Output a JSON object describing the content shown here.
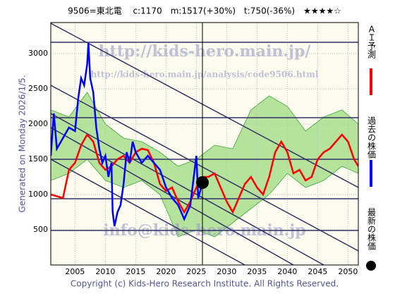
{
  "chart_data": {
    "type": "line",
    "title": "9506=東北電　 c:1170　m:1517(+30%)　t:750(-36%)　★★★★☆",
    "side_note": "Generated on Monday 2026/1/5.",
    "footer": "Copyright (c) Kids-Hero Research Institute. All Rights Reserved.",
    "watermarks": [
      "http://kids-hero.main.jp/",
      "http://kids-hero.main.jp/analysis/code9506.html",
      "info@kids-hero.main.jp"
    ],
    "xlim": [
      2001,
      2051.7
    ],
    "ylim": [
      0,
      3440
    ],
    "xticks": [
      2005,
      2010,
      2015,
      2020,
      2025,
      2030,
      2035,
      2040,
      2045,
      2050
    ],
    "yticks": [
      500,
      1000,
      1500,
      2000,
      2500,
      3000
    ],
    "grid": true,
    "now_x": 2026,
    "hlines": [
      3160,
      2090,
      1500,
      940,
      490
    ],
    "trend_lines": [
      {
        "x": [
          2001,
          2051.7
        ],
        "values": [
          3430,
          1100
        ]
      },
      {
        "x": [
          2001,
          2051.7
        ],
        "values": [
          2550,
          200
        ]
      },
      {
        "x": [
          2001,
          2046
        ],
        "values": [
          2150,
          0
        ]
      },
      {
        "x": [
          2001,
          2041
        ],
        "values": [
          1950,
          0
        ]
      },
      {
        "x": [
          2001,
          2033
        ],
        "values": [
          1500,
          0
        ]
      }
    ],
    "band": {
      "color": "#7ccf5a",
      "x": [
        2001,
        2004,
        2007,
        2010,
        2013,
        2016,
        2019,
        2022,
        2025,
        2028,
        2031,
        2034,
        2037,
        2040,
        2043,
        2046,
        2049,
        2051.7
      ],
      "upper": [
        2200,
        2100,
        2450,
        2000,
        1800,
        1750,
        1600,
        1400,
        1500,
        1700,
        1650,
        2200,
        2400,
        2250,
        1900,
        2100,
        2200,
        2000
      ],
      "lower": [
        1200,
        1300,
        1500,
        1200,
        1100,
        1200,
        1000,
        400,
        500,
        400,
        600,
        800,
        1000,
        1300,
        1100,
        1200,
        1400,
        1300
      ]
    },
    "series": [
      {
        "name": "ＡＩ予測",
        "color": "#ff0000",
        "style": "line",
        "x": [
          2001,
          2003,
          2004,
          2005,
          2006,
          2007,
          2008,
          2009,
          2010,
          2011,
          2012,
          2013,
          2014,
          2015,
          2016,
          2017,
          2018,
          2019,
          2020,
          2021,
          2022,
          2023,
          2024,
          2025,
          2026,
          2027,
          2028,
          2029,
          2030,
          2031,
          2032,
          2033,
          2034,
          2035,
          2036,
          2037,
          2038,
          2039,
          2040,
          2041,
          2042,
          2043,
          2044,
          2045,
          2046,
          2047,
          2048,
          2049,
          2050,
          2051,
          2051.7
        ],
        "values": [
          1000,
          950,
          1350,
          1450,
          1700,
          1850,
          1750,
          1450,
          1350,
          1400,
          1500,
          1550,
          1450,
          1600,
          1650,
          1630,
          1450,
          1150,
          1050,
          1100,
          900,
          750,
          900,
          1100,
          1250,
          1250,
          1300,
          1100,
          900,
          750,
          950,
          1150,
          1250,
          1100,
          1000,
          1250,
          1600,
          1750,
          1600,
          1300,
          1350,
          1200,
          1250,
          1500,
          1600,
          1650,
          1750,
          1850,
          1750,
          1500,
          1400
        ]
      },
      {
        "name": "過去の株価",
        "color": "#0000ff",
        "style": "line",
        "x": [
          2001,
          2001.5,
          2002,
          2003,
          2004,
          2005,
          2005.5,
          2006,
          2006.5,
          2007,
          2007.2,
          2007.5,
          2008,
          2008.5,
          2009,
          2009.5,
          2010,
          2010.5,
          2011,
          2011.2,
          2011.5,
          2012,
          2012.5,
          2013,
          2013.5,
          2014,
          2014.5,
          2015,
          2016,
          2017,
          2018,
          2019,
          2020,
          2021,
          2022,
          2023,
          2024,
          2024.5,
          2025,
          2025.3,
          2025.9
        ],
        "values": [
          1550,
          2150,
          1650,
          1800,
          1950,
          1900,
          2350,
          2650,
          2550,
          2850,
          3150,
          2650,
          2450,
          1950,
          1650,
          1450,
          1550,
          1250,
          1450,
          750,
          550,
          750,
          850,
          1150,
          1600,
          1450,
          1750,
          1600,
          1450,
          1550,
          1450,
          1350,
          1100,
          950,
          850,
          650,
          850,
          1200,
          1550,
          950,
          1130
        ]
      },
      {
        "name": "最新の株価",
        "color": "#000000",
        "style": "dot",
        "x": [
          2026
        ],
        "values": [
          1170
        ]
      }
    ]
  }
}
